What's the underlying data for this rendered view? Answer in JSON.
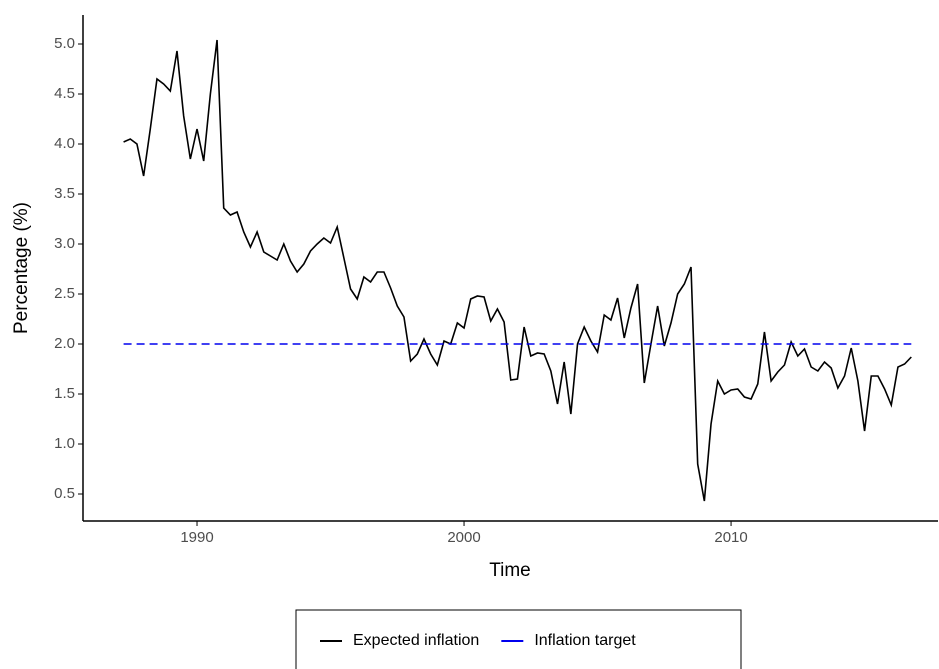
{
  "chart_data": {
    "type": "line",
    "xlabel": "Time",
    "ylabel": "Percentage (%)",
    "xlim": [
      1985.73,
      2017.75
    ],
    "ylim": [
      0.23,
      5.29
    ],
    "xticks": [
      1990,
      2000,
      2010
    ],
    "yticks": [
      0.5,
      {
        "value": 1,
        "label": "1.0"
      },
      1.5,
      {
        "value": 2,
        "label": "2.0"
      },
      2.5,
      {
        "value": 3,
        "label": "3.0"
      },
      3.5,
      {
        "value": 4,
        "label": "4.0"
      },
      4.5,
      {
        "value": 5,
        "label": "5.0"
      }
    ],
    "legend": "bottom",
    "series": [
      {
        "name": "Expected inflation",
        "color": "#000000",
        "dashed": false,
        "x": [
          1987.25,
          1987.5,
          1987.75,
          1988,
          1988.25,
          1988.5,
          1988.75,
          1989,
          1989.25,
          1989.5,
          1989.75,
          1990,
          1990.25,
          1990.5,
          1990.75,
          1991,
          1991.25,
          1991.5,
          1991.75,
          1992,
          1992.25,
          1992.5,
          1992.75,
          1993,
          1993.25,
          1993.5,
          1993.75,
          1994,
          1994.25,
          1994.5,
          1994.75,
          1995,
          1995.25,
          1995.5,
          1995.75,
          1996,
          1996.25,
          1996.5,
          1996.75,
          1997,
          1997.25,
          1997.5,
          1997.75,
          1998,
          1998.25,
          1998.5,
          1998.75,
          1999,
          1999.25,
          1999.5,
          1999.75,
          2000,
          2000.25,
          2000.5,
          2000.75,
          2001,
          2001.25,
          2001.5,
          2001.75,
          2002,
          2002.25,
          2002.5,
          2002.75,
          2003,
          2003.25,
          2003.5,
          2003.75,
          2004,
          2004.25,
          2004.5,
          2004.75,
          2005,
          2005.25,
          2005.5,
          2005.75,
          2006,
          2006.25,
          2006.5,
          2006.75,
          2007,
          2007.25,
          2007.5,
          2007.75,
          2008,
          2008.25,
          2008.5,
          2008.75,
          2009,
          2009.25,
          2009.5,
          2009.75,
          2010,
          2010.25,
          2010.5,
          2010.75,
          2011,
          2011.25,
          2011.5,
          2011.75,
          2012,
          2012.25,
          2012.5,
          2012.75,
          2013,
          2013.25,
          2013.5,
          2013.75,
          2014,
          2014.25,
          2014.5,
          2014.75,
          2015,
          2015.25,
          2015.5,
          2015.75,
          2016,
          2016.25,
          2016.5,
          2016.75
        ],
        "values": [
          4.02,
          4.05,
          4.0,
          3.68,
          4.15,
          4.65,
          4.6,
          4.53,
          4.93,
          4.28,
          3.85,
          4.15,
          3.83,
          4.5,
          5.04,
          3.36,
          3.29,
          3.32,
          3.12,
          2.97,
          3.12,
          2.92,
          2.88,
          2.84,
          3.0,
          2.83,
          2.72,
          2.8,
          2.93,
          3.0,
          3.06,
          3.01,
          3.17,
          2.86,
          2.55,
          2.45,
          2.67,
          2.62,
          2.72,
          2.72,
          2.56,
          2.38,
          2.27,
          1.83,
          1.9,
          2.05,
          1.9,
          1.79,
          2.03,
          2.0,
          2.21,
          2.16,
          2.45,
          2.48,
          2.47,
          2.23,
          2.35,
          2.22,
          1.64,
          1.65,
          2.17,
          1.88,
          1.91,
          1.9,
          1.73,
          1.4,
          1.82,
          1.3,
          2.0,
          2.17,
          2.03,
          1.92,
          2.29,
          2.24,
          2.46,
          2.06,
          2.36,
          2.6,
          1.61,
          2.0,
          2.38,
          1.98,
          2.21,
          2.5,
          2.6,
          2.77,
          0.8,
          0.43,
          1.2,
          1.63,
          1.5,
          1.54,
          1.55,
          1.47,
          1.45,
          1.6,
          2.12,
          1.63,
          1.72,
          1.79,
          2.02,
          1.88,
          1.95,
          1.77,
          1.73,
          1.82,
          1.76,
          1.56,
          1.68,
          1.96,
          1.63,
          1.13,
          1.68,
          1.68,
          1.55,
          1.39,
          1.77,
          1.8,
          1.87
        ]
      },
      {
        "name": "Inflation target",
        "color": "#0000ee",
        "dashed": true,
        "x": [
          1987.25,
          2016.75
        ],
        "values": [
          2,
          2
        ]
      }
    ]
  }
}
